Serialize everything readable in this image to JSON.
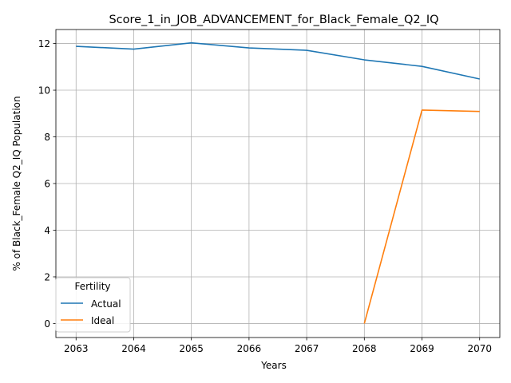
{
  "chart_data": {
    "type": "line",
    "title": "Score_1_in_JOB_ADVANCEMENT_for_Black_Female_Q2_IQ",
    "xlabel": "Years",
    "ylabel": "% of Black_Female Q2_IQ Population",
    "x": [
      2063,
      2064,
      2065,
      2066,
      2067,
      2068,
      2069,
      2070
    ],
    "xlim": [
      2062.65,
      2070.35
    ],
    "ylim": [
      -0.6,
      12.6
    ],
    "yticks": [
      0,
      2,
      4,
      6,
      8,
      10,
      12
    ],
    "grid": true,
    "legend": {
      "title": "Fertility",
      "position": "lower-left"
    },
    "series": [
      {
        "name": "Actual",
        "color": "#1f77b4",
        "x": [
          2063,
          2064,
          2065,
          2066,
          2067,
          2068,
          2069,
          2070
        ],
        "values": [
          11.88,
          11.76,
          12.03,
          11.81,
          11.71,
          11.3,
          11.02,
          10.48
        ]
      },
      {
        "name": "Ideal",
        "color": "#ff7f0e",
        "x": [
          2068,
          2069,
          2070
        ],
        "values": [
          0.0,
          9.15,
          9.09
        ]
      }
    ]
  }
}
